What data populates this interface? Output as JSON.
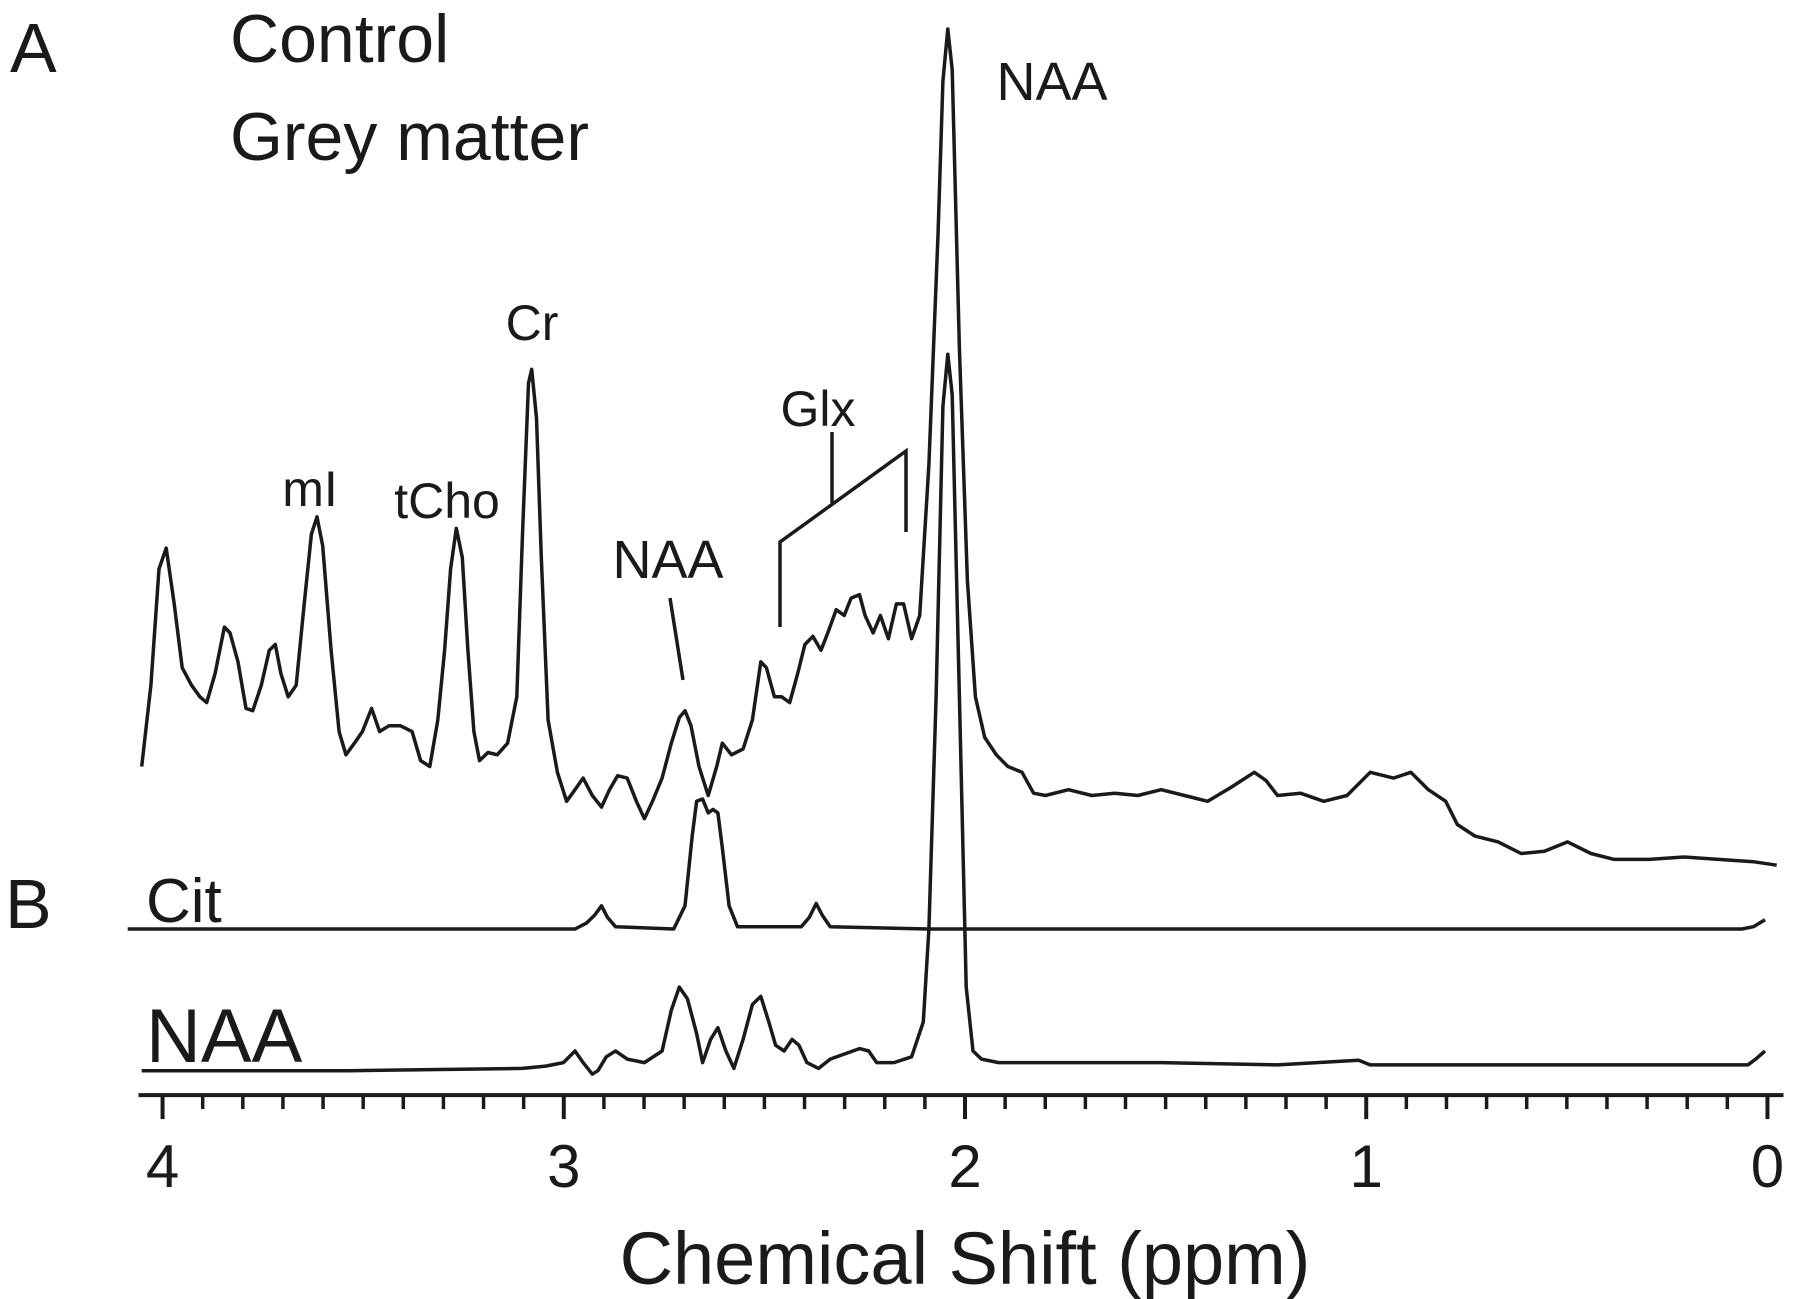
{
  "chart_data": {
    "type": "line",
    "panels": [
      "A",
      "B"
    ],
    "title": [
      "Control",
      "Grey matter"
    ],
    "xlabel": "Chemical Shift (ppm)",
    "xlim": [
      4.06,
      -0.04
    ],
    "ylim": [
      0,
      950
    ],
    "xticks": [
      4,
      3,
      2,
      1,
      0
    ],
    "x_minor_ticks": [
      3.9,
      3.8,
      3.7,
      3.6,
      3.5,
      3.4,
      3.3,
      3.2,
      3.1,
      2.9,
      2.8,
      2.7,
      2.6,
      2.5,
      2.4,
      2.3,
      2.2,
      2.1,
      1.9,
      1.8,
      1.7,
      1.6,
      1.5,
      1.4,
      1.3,
      1.2,
      1.1,
      0.9,
      0.8,
      0.7,
      0.6,
      0.5,
      0.4,
      0.3,
      0.2,
      0.1
    ],
    "annotations": [
      "mI",
      "tCho",
      "Cr",
      "NAA",
      "Glx",
      "NAA"
    ],
    "series": [
      {
        "color": "#1a1a1a",
        "x": [
          4.052,
          4.029,
          4.009,
          3.991,
          3.971,
          3.951,
          3.928,
          3.907,
          3.89,
          3.869,
          3.846,
          3.832,
          3.812,
          3.792,
          3.775,
          3.754,
          3.734,
          3.719,
          3.705,
          3.687,
          3.667,
          3.647,
          3.629,
          3.615,
          3.601,
          3.58,
          3.56,
          3.543,
          3.522,
          3.502,
          3.479,
          3.459,
          3.436,
          3.407,
          3.378,
          3.357,
          3.334,
          3.314,
          3.297,
          3.282,
          3.268,
          3.253,
          3.239,
          3.224,
          3.21,
          3.189,
          3.166,
          3.14,
          3.117,
          3.103,
          3.088,
          3.08,
          3.068,
          3.056,
          3.039,
          3.016,
          2.993,
          2.972,
          2.952,
          2.929,
          2.906,
          2.886,
          2.866,
          2.842,
          2.819,
          2.799,
          2.779,
          2.755,
          2.732,
          2.712,
          2.698,
          2.683,
          2.663,
          2.64,
          2.619,
          2.605,
          2.582,
          2.553,
          2.53,
          2.509,
          2.495,
          2.475,
          2.457,
          2.437,
          2.417,
          2.399,
          2.379,
          2.359,
          2.342,
          2.321,
          2.301,
          2.284,
          2.263,
          2.249,
          2.229,
          2.211,
          2.191,
          2.171,
          2.153,
          2.133,
          2.113,
          2.09,
          2.067,
          2.055,
          2.043,
          2.032,
          2.014,
          1.994,
          1.974,
          1.951,
          1.922,
          1.893,
          1.858,
          1.829,
          1.8,
          1.742,
          1.684,
          1.627,
          1.569,
          1.511,
          1.453,
          1.395,
          1.337,
          1.279,
          1.25,
          1.221,
          1.164,
          1.106,
          1.048,
          0.99,
          0.932,
          0.889,
          0.845,
          0.802,
          0.773,
          0.729,
          0.671,
          0.614,
          0.556,
          0.498,
          0.44,
          0.382,
          0.295,
          0.208,
          0.122,
          0.035,
          -0.023
        ],
        "values": [
          290,
          360,
          460,
          478,
          430,
          375,
          360,
          350,
          345,
          370,
          410,
          405,
          380,
          340,
          338,
          360,
          390,
          395,
          370,
          350,
          360,
          430,
          490,
          505,
          480,
          390,
          320,
          300,
          310,
          320,
          340,
          320,
          325,
          325,
          320,
          295,
          290,
          330,
          390,
          460,
          495,
          470,
          390,
          320,
          295,
          302,
          300,
          310,
          350,
          490,
          620,
          632,
          590,
          470,
          330,
          285,
          260,
          270,
          280,
          265,
          255,
          270,
          282,
          280,
          260,
          245,
          260,
          280,
          310,
          332,
          338,
          325,
          290,
          265,
          290,
          310,
          300,
          305,
          330,
          380,
          375,
          350,
          350,
          345,
          370,
          395,
          402,
          390,
          405,
          425,
          420,
          435,
          438,
          420,
          405,
          420,
          400,
          430,
          430,
          400,
          420,
          550,
          750,
          880,
          925,
          890,
          650,
          450,
          350,
          315,
          300,
          290,
          285,
          267,
          265,
          270,
          265,
          267,
          265,
          270,
          265,
          260,
          272,
          285,
          278,
          265,
          267,
          260,
          265,
          285,
          280,
          285,
          270,
          260,
          240,
          230,
          225,
          215,
          217,
          225,
          215,
          210,
          210,
          212,
          210,
          208,
          205
        ]
      },
      {
        "name": "Cit",
        "color": "#1a1a1a",
        "x": [
          4.087,
          3.537,
          2.972,
          2.944,
          2.923,
          2.906,
          2.891,
          2.871,
          2.726,
          2.698,
          2.68,
          2.669,
          2.654,
          2.64,
          2.628,
          2.616,
          2.605,
          2.588,
          2.567,
          2.408,
          2.388,
          2.371,
          2.356,
          2.336,
          2.09,
          0.064,
          0.035,
          0.006
        ],
        "values": [
          150,
          150,
          150,
          155,
          162,
          170,
          160,
          152,
          150,
          170,
          230,
          260,
          262,
          250,
          253,
          250,
          220,
          170,
          152,
          152,
          160,
          172,
          162,
          152,
          150,
          150,
          152,
          158
        ]
      },
      {
        "name": "NAA",
        "color": "#1a1a1a",
        "x": [
          4.052,
          3.537,
          3.103,
          3.045,
          3.001,
          2.972,
          2.952,
          2.929,
          2.915,
          2.894,
          2.871,
          2.842,
          2.799,
          2.755,
          2.732,
          2.712,
          2.692,
          2.669,
          2.654,
          2.634,
          2.616,
          2.596,
          2.576,
          2.553,
          2.53,
          2.509,
          2.489,
          2.472,
          2.451,
          2.431,
          2.414,
          2.394,
          2.365,
          2.336,
          2.263,
          2.24,
          2.22,
          2.177,
          2.133,
          2.104,
          2.09,
          2.072,
          2.055,
          2.043,
          2.032,
          2.014,
          1.997,
          1.98,
          1.959,
          1.916,
          1.511,
          1.221,
          1.019,
          0.99,
          0.049,
          0.029,
          0.006
        ],
        "values": [
          28,
          28,
          30,
          32,
          35,
          45,
          35,
          25,
          28,
          40,
          45,
          38,
          35,
          45,
          80,
          100,
          90,
          60,
          35,
          55,
          65,
          45,
          30,
          55,
          85,
          92,
          70,
          50,
          45,
          55,
          50,
          35,
          30,
          38,
          47,
          45,
          35,
          35,
          40,
          70,
          150,
          350,
          600,
          645,
          610,
          350,
          100,
          45,
          38,
          35,
          35,
          33,
          37,
          33,
          33,
          38,
          45
        ]
      }
    ]
  }
}
